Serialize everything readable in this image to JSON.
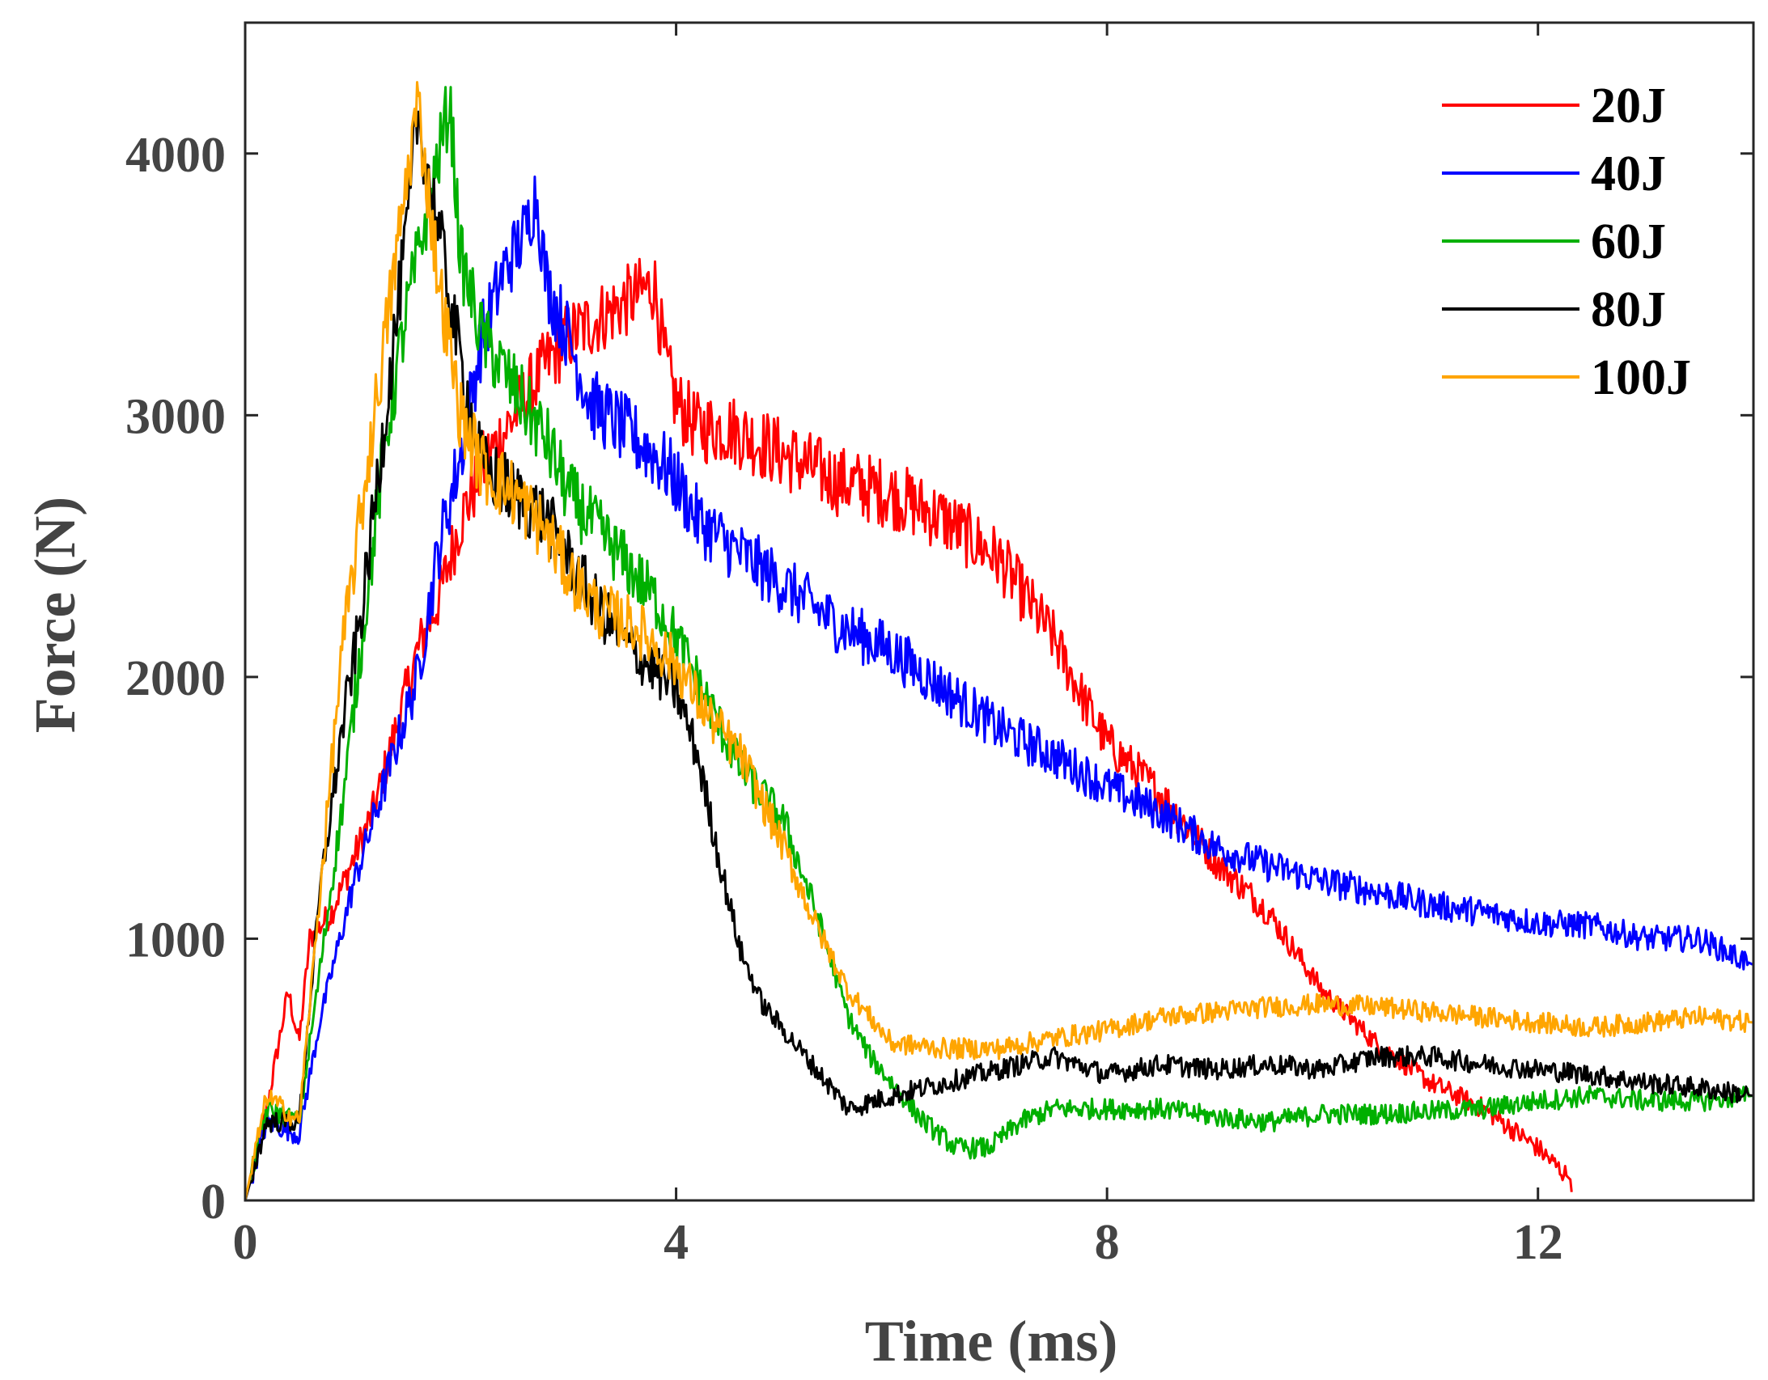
{
  "chart_data": {
    "type": "line",
    "title": "",
    "xlabel": "Time (ms)",
    "ylabel": "Force (N)",
    "xlim": [
      0,
      14
    ],
    "ylim": [
      0,
      4500
    ],
    "xticks": [
      0,
      4,
      8,
      12
    ],
    "xtick_labels": [
      "0",
      "4",
      "8",
      "12"
    ],
    "yticks": [
      0,
      1000,
      2000,
      3000,
      4000
    ],
    "ytick_labels": [
      "0",
      "1000",
      "2000",
      "3000",
      "4000"
    ],
    "grid": false,
    "legend_position": "top-right",
    "series": [
      {
        "name": "20J",
        "color": "#ff0000",
        "points": [
          [
            0,
            0
          ],
          [
            0.2,
            350
          ],
          [
            0.4,
            800
          ],
          [
            0.5,
            600
          ],
          [
            0.6,
            1000
          ],
          [
            0.8,
            1100
          ],
          [
            1.0,
            1300
          ],
          [
            1.2,
            1500
          ],
          [
            1.4,
            1800
          ],
          [
            1.6,
            2100
          ],
          [
            1.8,
            2300
          ],
          [
            2.0,
            2600
          ],
          [
            2.2,
            2800
          ],
          [
            2.5,
            3000
          ],
          [
            2.8,
            3200
          ],
          [
            3.0,
            3300
          ],
          [
            3.2,
            3350
          ],
          [
            3.4,
            3400
          ],
          [
            3.6,
            3450
          ],
          [
            3.8,
            3500
          ],
          [
            3.9,
            3200
          ],
          [
            4.0,
            3050
          ],
          [
            4.2,
            2950
          ],
          [
            4.5,
            2950
          ],
          [
            5.0,
            2850
          ],
          [
            5.5,
            2750
          ],
          [
            6.0,
            2700
          ],
          [
            6.5,
            2600
          ],
          [
            7.0,
            2450
          ],
          [
            7.5,
            2150
          ],
          [
            7.8,
            1900
          ],
          [
            8.0,
            1750
          ],
          [
            8.5,
            1550
          ],
          [
            9.0,
            1300
          ],
          [
            9.5,
            1100
          ],
          [
            10.0,
            800
          ],
          [
            10.5,
            600
          ],
          [
            11.0,
            450
          ],
          [
            11.5,
            350
          ],
          [
            12.0,
            200
          ],
          [
            12.3,
            80
          ],
          [
            12.32,
            0
          ]
        ]
      },
      {
        "name": "40J",
        "color": "#0000ff",
        "points": [
          [
            0,
            0
          ],
          [
            0.2,
            300
          ],
          [
            0.5,
            250
          ],
          [
            0.7,
            700
          ],
          [
            1.0,
            1200
          ],
          [
            1.3,
            1600
          ],
          [
            1.6,
            2000
          ],
          [
            1.8,
            2500
          ],
          [
            2.0,
            2850
          ],
          [
            2.2,
            3300
          ],
          [
            2.4,
            3550
          ],
          [
            2.6,
            3700
          ],
          [
            2.7,
            3850
          ],
          [
            2.8,
            3500
          ],
          [
            3.0,
            3300
          ],
          [
            3.2,
            3050
          ],
          [
            3.5,
            2950
          ],
          [
            3.8,
            2850
          ],
          [
            4.0,
            2750
          ],
          [
            4.2,
            2600
          ],
          [
            4.5,
            2500
          ],
          [
            5.0,
            2350
          ],
          [
            5.5,
            2200
          ],
          [
            6.0,
            2100
          ],
          [
            6.5,
            1950
          ],
          [
            7.0,
            1800
          ],
          [
            7.5,
            1700
          ],
          [
            8.0,
            1580
          ],
          [
            8.5,
            1480
          ],
          [
            9.0,
            1350
          ],
          [
            9.5,
            1280
          ],
          [
            10.0,
            1220
          ],
          [
            10.5,
            1180
          ],
          [
            11.0,
            1130
          ],
          [
            11.5,
            1100
          ],
          [
            12.0,
            1060
          ],
          [
            12.5,
            1050
          ],
          [
            13.0,
            1000
          ],
          [
            13.5,
            1000
          ],
          [
            14.0,
            900
          ]
        ]
      },
      {
        "name": "60J",
        "color": "#00b000",
        "points": [
          [
            0,
            0
          ],
          [
            0.2,
            350
          ],
          [
            0.5,
            300
          ],
          [
            0.7,
            900
          ],
          [
            0.9,
            1500
          ],
          [
            1.1,
            2200
          ],
          [
            1.3,
            2900
          ],
          [
            1.5,
            3400
          ],
          [
            1.7,
            3800
          ],
          [
            1.9,
            4200
          ],
          [
            2.0,
            3600
          ],
          [
            2.2,
            3300
          ],
          [
            2.5,
            3100
          ],
          [
            2.8,
            2900
          ],
          [
            3.0,
            2700
          ],
          [
            3.2,
            2600
          ],
          [
            3.5,
            2450
          ],
          [
            3.8,
            2300
          ],
          [
            4.0,
            2150
          ],
          [
            4.3,
            1900
          ],
          [
            4.6,
            1650
          ],
          [
            5.0,
            1450
          ],
          [
            5.3,
            1100
          ],
          [
            5.6,
            700
          ],
          [
            5.8,
            550
          ],
          [
            6.0,
            450
          ],
          [
            6.3,
            300
          ],
          [
            6.6,
            200
          ],
          [
            6.9,
            200
          ],
          [
            7.2,
            300
          ],
          [
            7.5,
            350
          ],
          [
            8.0,
            350
          ],
          [
            8.5,
            350
          ],
          [
            9.0,
            320
          ],
          [
            9.5,
            300
          ],
          [
            10.0,
            330
          ],
          [
            10.5,
            330
          ],
          [
            11.0,
            340
          ],
          [
            11.5,
            350
          ],
          [
            12.0,
            380
          ],
          [
            12.5,
            400
          ],
          [
            13.0,
            380
          ],
          [
            13.5,
            380
          ],
          [
            14.0,
            400
          ]
        ]
      },
      {
        "name": "80J",
        "color": "#000000",
        "points": [
          [
            0,
            0
          ],
          [
            0.2,
            300
          ],
          [
            0.5,
            300
          ],
          [
            0.7,
            1200
          ],
          [
            0.9,
            1800
          ],
          [
            1.1,
            2300
          ],
          [
            1.3,
            3000
          ],
          [
            1.5,
            3700
          ],
          [
            1.6,
            4150
          ],
          [
            1.8,
            3700
          ],
          [
            2.0,
            3200
          ],
          [
            2.2,
            2800
          ],
          [
            2.5,
            2700
          ],
          [
            2.8,
            2600
          ],
          [
            3.0,
            2450
          ],
          [
            3.3,
            2250
          ],
          [
            3.6,
            2100
          ],
          [
            4.0,
            1950
          ],
          [
            4.2,
            1700
          ],
          [
            4.4,
            1300
          ],
          [
            4.6,
            950
          ],
          [
            4.8,
            750
          ],
          [
            5.0,
            650
          ],
          [
            5.3,
            500
          ],
          [
            5.6,
            350
          ],
          [
            6.0,
            400
          ],
          [
            6.5,
            450
          ],
          [
            7.0,
            500
          ],
          [
            7.5,
            550
          ],
          [
            8.0,
            480
          ],
          [
            8.5,
            520
          ],
          [
            9.0,
            500
          ],
          [
            9.5,
            520
          ],
          [
            10.0,
            500
          ],
          [
            10.5,
            550
          ],
          [
            11.0,
            550
          ],
          [
            11.5,
            520
          ],
          [
            12.0,
            500
          ],
          [
            12.5,
            480
          ],
          [
            13.0,
            450
          ],
          [
            13.5,
            430
          ],
          [
            14.0,
            400
          ]
        ]
      },
      {
        "name": "100J",
        "color": "#ffa500",
        "points": [
          [
            0,
            0
          ],
          [
            0.2,
            400
          ],
          [
            0.5,
            300
          ],
          [
            0.7,
            1200
          ],
          [
            0.9,
            2100
          ],
          [
            1.1,
            2700
          ],
          [
            1.3,
            3300
          ],
          [
            1.5,
            3900
          ],
          [
            1.6,
            4200
          ],
          [
            1.8,
            3500
          ],
          [
            2.0,
            3000
          ],
          [
            2.2,
            2800
          ],
          [
            2.5,
            2700
          ],
          [
            2.8,
            2550
          ],
          [
            3.0,
            2400
          ],
          [
            3.3,
            2250
          ],
          [
            3.6,
            2200
          ],
          [
            4.0,
            2050
          ],
          [
            4.3,
            1850
          ],
          [
            4.6,
            1700
          ],
          [
            5.0,
            1350
          ],
          [
            5.3,
            1050
          ],
          [
            5.6,
            800
          ],
          [
            6.0,
            600
          ],
          [
            6.5,
            580
          ],
          [
            7.0,
            580
          ],
          [
            7.5,
            620
          ],
          [
            8.0,
            650
          ],
          [
            8.5,
            700
          ],
          [
            9.0,
            720
          ],
          [
            9.5,
            740
          ],
          [
            10.0,
            750
          ],
          [
            10.5,
            740
          ],
          [
            11.0,
            720
          ],
          [
            11.5,
            700
          ],
          [
            12.0,
            680
          ],
          [
            12.5,
            660
          ],
          [
            13.0,
            680
          ],
          [
            13.5,
            700
          ],
          [
            14.0,
            680
          ]
        ]
      }
    ]
  }
}
